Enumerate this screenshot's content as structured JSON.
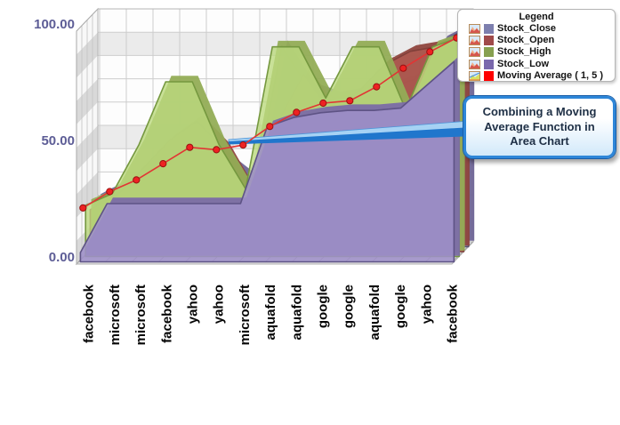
{
  "legend": {
    "title": "Legend",
    "items": [
      {
        "label": "Stock_Close",
        "color": "#7d7fae",
        "icon": "area-red-icon"
      },
      {
        "label": "Stock_Open",
        "color": "#a04a4a",
        "icon": "area-red-icon"
      },
      {
        "label": "Stock_High",
        "color": "#87a050",
        "icon": "area-red-icon"
      },
      {
        "label": "Stock_Low",
        "color": "#7a68ac",
        "icon": "area-red-icon"
      },
      {
        "label": "Moving Average ( 1, 5 )",
        "color": "#fe0000",
        "icon": "area-green-icon"
      }
    ]
  },
  "annotation": {
    "text": "Combining a Moving Average Function in Area Chart",
    "border_color": "#2e86d8",
    "text_color": "#1e2f45"
  },
  "chart_data": {
    "type": "area",
    "projection": "3d",
    "grid": true,
    "legend_position": "top-right",
    "categories": [
      "facebook",
      "microsoft",
      "microsoft",
      "facebook",
      "yahoo",
      "yahoo",
      "microsoft",
      "aquafold",
      "aquafold",
      "google",
      "google",
      "aquafold",
      "google",
      "yahoo",
      "facebook"
    ],
    "series": [
      {
        "name": "Stock_Close",
        "kind": "area",
        "legend_color": "#7d7fae",
        "area_fill": "#8a7fb4",
        "area_stroke": "#57506e",
        "area_back": "#6f6596",
        "fill_opacity": 0.92,
        "values": [
          20,
          26,
          32,
          42,
          46,
          36,
          27,
          86,
          68,
          64,
          66,
          68,
          72,
          88,
          94
        ]
      },
      {
        "name": "Stock_Open",
        "kind": "area",
        "legend_color": "#a04a4a",
        "area_fill": "#b05a50",
        "area_stroke": "#82403a",
        "area_back": "#8f463e",
        "fill_opacity": 0.82,
        "values": [
          18,
          24,
          36,
          48,
          56,
          44,
          24,
          55,
          76,
          60,
          68,
          80,
          86,
          88,
          92
        ]
      },
      {
        "name": "Stock_High",
        "kind": "area",
        "legend_color": "#87a050",
        "area_fill": "#bcda7e",
        "area_stroke": "#75983f",
        "area_back": "#93ad56",
        "fill_opacity": 0.8,
        "values": [
          22,
          27,
          48,
          75,
          75,
          48,
          29,
          90,
          90,
          68,
          90,
          90,
          63,
          90,
          94
        ]
      },
      {
        "name": "Stock_Low",
        "kind": "area",
        "legend_color": "#7a68ac",
        "area_fill": "#9e90c8",
        "area_stroke": "#5e5385",
        "area_back": "#7b6ca6",
        "fill_opacity": 0.88,
        "values": [
          4,
          25,
          25,
          25,
          25,
          25,
          25,
          58,
          62,
          64,
          65,
          65,
          66,
          76,
          86
        ]
      },
      {
        "name": "Moving Average ( 1, 5 )",
        "kind": "line",
        "legend_color": "#fe0000",
        "line_color": "#e23434",
        "marker_fill": "#ee2222",
        "marker_stroke": "#991111",
        "values": [
          22,
          29,
          34,
          41,
          48,
          47,
          49,
          57,
          63,
          67,
          68,
          74,
          82,
          89,
          95
        ]
      }
    ],
    "ylim": [
      0,
      100
    ],
    "y_ticks": [
      0,
      50,
      100
    ],
    "y_tick_labels": [
      "0.00",
      "50.00",
      "100.00"
    ],
    "y_tick_color": "#5d5d96",
    "x_label_color": "#050505",
    "annotation": "Combining a Moving Average Function in Area Chart"
  }
}
